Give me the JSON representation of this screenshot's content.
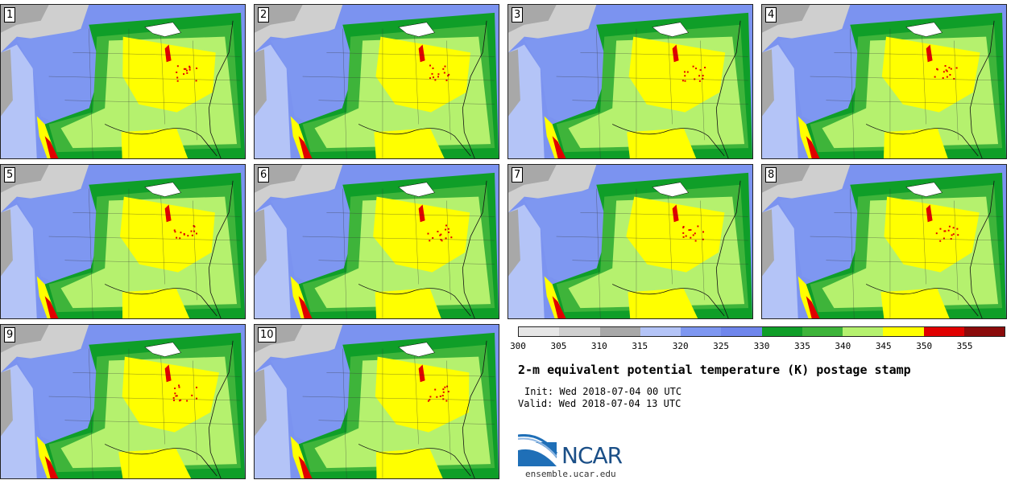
{
  "panels": [
    {
      "label": "1"
    },
    {
      "label": "2"
    },
    {
      "label": "3"
    },
    {
      "label": "4"
    },
    {
      "label": "5"
    },
    {
      "label": "6"
    },
    {
      "label": "7"
    },
    {
      "label": "8"
    },
    {
      "label": "9"
    },
    {
      "label": "10"
    }
  ],
  "colorbar": {
    "colors": [
      "#e6e6e6",
      "#cfcfcf",
      "#a8a8a8",
      "#b4c4f7",
      "#7e97f1",
      "#6f86ec",
      "#0f9e28",
      "#3eb43a",
      "#b5f16e",
      "#ffff00",
      "#e00000",
      "#8b0b0b"
    ],
    "ticks": [
      "300",
      "305",
      "310",
      "315",
      "320",
      "325",
      "330",
      "335",
      "340",
      "345",
      "350",
      "355"
    ]
  },
  "title": "2-m equivalent potential temperature (K) postage stamp",
  "init": "Init: Wed 2018-07-04 00 UTC",
  "valid": "Valid: Wed 2018-07-04 13 UTC",
  "logo": {
    "text": "NCAR"
  },
  "site": "ensemble.ucar.edu"
}
